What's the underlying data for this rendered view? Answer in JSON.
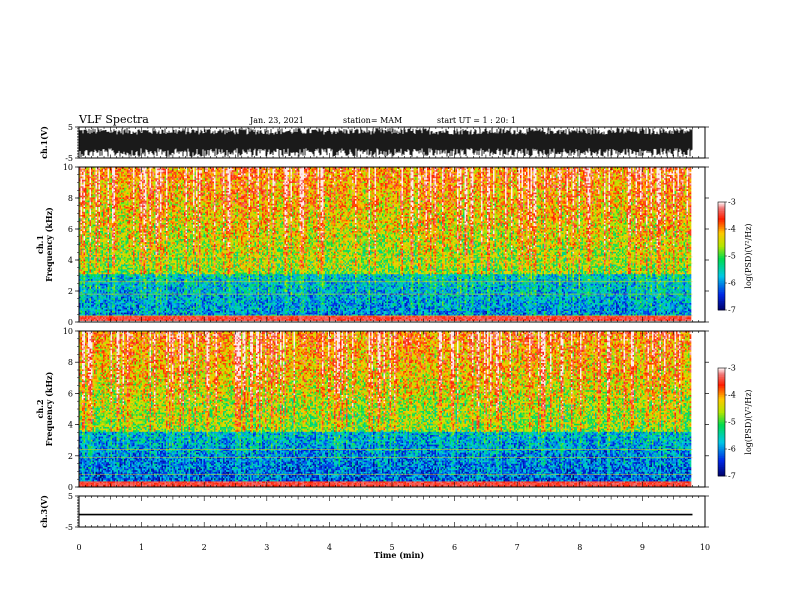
{
  "header": {
    "title": "VLF Spectra",
    "date": "Jan. 23, 2021",
    "station": "station= MAM",
    "start_ut": "start UT =  1 : 20: 1"
  },
  "chart_data": [
    {
      "type": "line",
      "panel": "ch1-waveform",
      "ylabel": "ch.1(V)",
      "ylim": [
        -5,
        5
      ],
      "yticks": [
        "5",
        "-5"
      ],
      "description_values": "dense impulsive waveform, amplitude saturating between -5 and 5 V"
    },
    {
      "type": "heatmap",
      "panel": "ch1-spectrogram",
      "ylabel": "ch.1\nFrequency (kHz)",
      "ylim": [
        0,
        10
      ],
      "yticks": [
        "0",
        "2",
        "4",
        "6",
        "8",
        "10"
      ],
      "colorbar": {
        "label": "log(PSD)(V²/Hz)",
        "range": [
          -7,
          -3
        ],
        "ticks": [
          "-3",
          "-4",
          "-5",
          "-6",
          "-7"
        ]
      }
    },
    {
      "type": "heatmap",
      "panel": "ch2-spectrogram",
      "ylabel": "ch.2\nFrequency (kHz)",
      "ylim": [
        0,
        10
      ],
      "yticks": [
        "0",
        "2",
        "4",
        "6",
        "8",
        "10"
      ],
      "colorbar": {
        "label": "log(PSD)(V²/Hz)",
        "range": [
          -7,
          -3
        ],
        "ticks": [
          "-3",
          "-4",
          "-5",
          "-6",
          "-7"
        ]
      }
    },
    {
      "type": "line",
      "panel": "ch3-waveform",
      "ylabel": "ch.3(V)",
      "ylim": [
        -5,
        5
      ],
      "yticks": [
        "5",
        "-5"
      ],
      "x": [
        0,
        9.8
      ],
      "values": [
        -1,
        -1
      ]
    }
  ],
  "x_axis": {
    "label": "Time (min)",
    "range": [
      0,
      10
    ],
    "ticks": [
      "0",
      "1",
      "2",
      "3",
      "4",
      "5",
      "6",
      "7",
      "8",
      "9",
      "10"
    ]
  },
  "colors": {
    "low": "#000080",
    "mid": "#00cc66",
    "high": "#ff2200"
  }
}
